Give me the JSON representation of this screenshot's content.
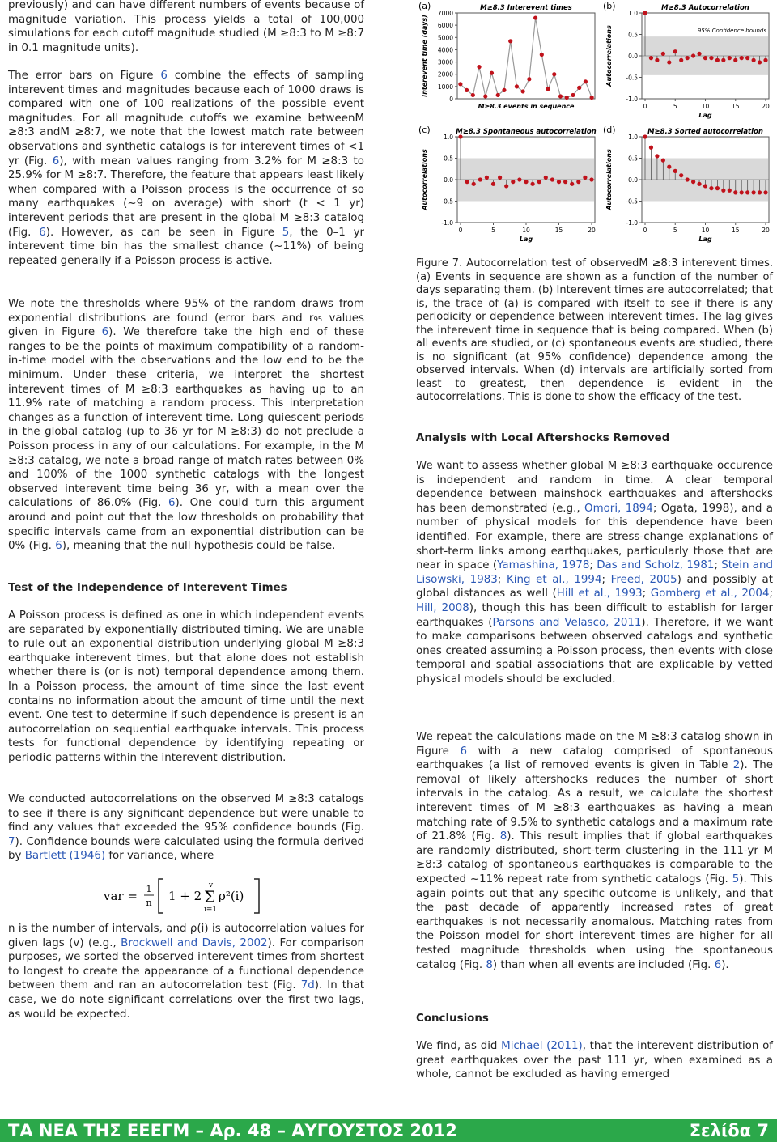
{
  "left_column": {
    "paragraphs": [
      [
        "previously) and can have different numbers of events because of magnitude variation. This process yields a total of 100,000 simulations for each cutoff magnitude studied (M ≥8:3 to M ≥8:7 in 0.1 magnitude units)."
      ],
      [
        "The error bars on Figure ",
        {
          "link": "6"
        },
        " combine the effects of sampling interevent times and magnitudes because each of 1000 draws is compared with one of 100 realizations of the possible event magnitudes. For all magnitude cutoffs we examine betweenM ≥8:3 andM ≥8:7, we note that the lowest match rate between observations and synthetic catalogs is for interevent times of <1 yr (Fig. ",
        {
          "link": "6"
        },
        "), with mean values ranging from 3.2% for M ≥8:3 to 25.9% for M ≥8:7. Therefore, the feature that appears least likely when compared with a Poisson process is the occurrence of so many earthquakes (~9 on average) with short (t < 1 yr) interevent periods that are present in the global M ≥8:3 catalog (Fig. ",
        {
          "link": "6"
        },
        "). However, as can be seen in Figure ",
        {
          "link": "5"
        },
        ", the 0–1 yr interevent time bin has the smallest chance (~11%) of being repeated generally if a Poisson process is active."
      ],
      [
        "We note the thresholds where 95% of the random draws from exponential distributions are found (error bars and r₉₅ values given in Figure ",
        {
          "link": "6"
        },
        "). We therefore take the high end of these ranges to be the points of maximum compatibility of a random-in-time model with the observations and the low end to be the minimum. Under these criteria, we interpret the shortest interevent times of M ≥8:3 earthquakes as having up to an 11.9% rate of matching a random process. This interpretation changes as a function of interevent time. Long quiescent periods in the global catalog (up to 36 yr for M ≥8:3) do not preclude a Poisson process in any of our calculations. For example, in the M ≥8:3 catalog, we note a broad range of match rates between 0% and 100% of the 1000 synthetic catalogs with the longest observed interevent time being 36 yr, with a mean over the calculations of 86.0% (Fig. ",
        {
          "link": "6"
        },
        "). One could turn this argument around and point out that the low thresholds on probability that specific intervals came from an exponential distribution can be 0% (Fig. ",
        {
          "link": "6"
        },
        "), meaning that the null hypothesis could be false."
      ]
    ],
    "section_heading": "Test of the Independence of Interevent Times",
    "section_paragraphs": [
      [
        "A Poisson process is defined as one in which independent events are separated by exponentially distributed timing. We are unable to rule out an exponential distribution underlying global M ≥8:3 earthquake interevent times, but that alone does not establish whether there is (or is not) temporal dependence among them. In a Poisson process, the amount of time since the last event contains no information about the amount of time until the next event. One test to determine if such dependence is present is an autocorrelation on sequential earthquake intervals. This process tests for functional dependence by identifying repeating or periodic patterns within the interevent distribution."
      ],
      [
        "We conducted autocorrelations on the observed M ≥8:3 catalogs to see if there is any significant dependence but were unable to find any values that exceeded the 95% confidence bounds (Fig. ",
        {
          "link": "7"
        },
        "). Confidence bounds were calculated using the formula derived by ",
        {
          "link": "Bartlett (1946)"
        },
        " for variance, where"
      ]
    ],
    "formula": {
      "lhs": "var =",
      "coefficient": [
        "1",
        "n"
      ],
      "bracket_body": "1 + 2",
      "sum_upper": "v",
      "sum_lower": "i=1",
      "summand": "ρ²(i)"
    },
    "after_formula": [
      "n is the number of intervals, and ρ(i) is autocorrelation values for given lags (v) (e.g., ",
      {
        "link": "Brockwell and Davis, 2002"
      },
      "). For comparison purposes, we sorted the observed interevent times from shortest to longest to create the appearance of a functional dependence between them and ran an autocorrelation test (Fig. ",
      {
        "link": "7d"
      },
      "). In that case, we do note significant correlations over the first two lags, as would be expected."
    ]
  },
  "figure": {
    "panels": [
      {
        "label": "(a)",
        "type": "line",
        "title": "M≥8.3 Interevent times",
        "ylabel": "Interevent time (days)",
        "xlabel": "M≥8.3 events in sequence",
        "ylim": [
          0,
          7000
        ],
        "yticks": [
          0,
          1000,
          2000,
          3000,
          4000,
          5000,
          6000,
          7000
        ],
        "values": [
          1200,
          700,
          300,
          2600,
          200,
          2100,
          300,
          700,
          4700,
          1000,
          600,
          1600,
          6600,
          3600,
          800,
          2000,
          200,
          100,
          300,
          900,
          1400,
          100
        ]
      },
      {
        "label": "(b)",
        "type": "stem",
        "title": "M≥8.3 Autocorrelation",
        "ylabel": "Autocorrelations",
        "xlabel": "Lag",
        "annotation": "95% Confidence bounds",
        "confidence_bound": 0.45,
        "xlim": [
          0,
          20
        ],
        "xticks": [
          0,
          5,
          10,
          15,
          20
        ],
        "ylim": [
          -1,
          1
        ],
        "yticks": [
          {
            "value": -1,
            "label": "-1.0"
          },
          {
            "value": -0.5,
            "label": "-0.5"
          },
          {
            "value": 0,
            "label": "0.0"
          },
          {
            "value": 0.5,
            "label": "0.5"
          },
          {
            "value": 1,
            "label": "1.0"
          }
        ],
        "values": [
          1,
          -0.05,
          -0.1,
          0.05,
          -0.15,
          0.1,
          -0.1,
          -0.05,
          0,
          0.05,
          -0.05,
          -0.05,
          -0.1,
          -0.1,
          -0.05,
          -0.1,
          -0.05,
          -0.05,
          -0.1,
          -0.15,
          -0.1
        ]
      },
      {
        "label": "(c)",
        "type": "stem",
        "title": "M≥8.3 Spontaneous autocorrelation",
        "ylabel": "Autocorrelations",
        "xlabel": "Lag",
        "confidence_bound": 0.5,
        "xlim": [
          0,
          20
        ],
        "xticks": [
          0,
          5,
          10,
          15,
          20
        ],
        "ylim": [
          -1,
          1
        ],
        "yticks": [
          {
            "value": -1,
            "label": "-1.0"
          },
          {
            "value": -0.5,
            "label": "-0.5"
          },
          {
            "value": 0,
            "label": "0.0"
          },
          {
            "value": 0.5,
            "label": "0.5"
          },
          {
            "value": 1,
            "label": "1.0"
          }
        ],
        "values": [
          1,
          -0.05,
          -0.1,
          0,
          0.05,
          -0.1,
          0.05,
          -0.15,
          -0.05,
          0,
          -0.05,
          -0.1,
          -0.05,
          0.05,
          0,
          -0.05,
          -0.05,
          -0.1,
          -0.05,
          0.05,
          0
        ]
      },
      {
        "label": "(d)",
        "type": "stem",
        "title": "M≥8.3 Sorted autocorrelation",
        "ylabel": "Autocorrelations",
        "xlabel": "Lag",
        "confidence_bound": 0.5,
        "xlim": [
          0,
          20
        ],
        "xticks": [
          0,
          5,
          10,
          15,
          20
        ],
        "ylim": [
          -1,
          1
        ],
        "yticks": [
          {
            "value": -1,
            "label": "-1.0"
          },
          {
            "value": -0.5,
            "label": "-0.5"
          },
          {
            "value": 0,
            "label": "0.0"
          },
          {
            "value": 0.5,
            "label": "0.5"
          },
          {
            "value": 1,
            "label": "1.0"
          }
        ],
        "values": [
          1,
          0.75,
          0.55,
          0.45,
          0.3,
          0.2,
          0.1,
          0,
          -0.05,
          -0.1,
          -0.15,
          -0.2,
          -0.2,
          -0.25,
          -0.25,
          -0.3,
          -0.3,
          -0.3,
          -0.3,
          -0.3,
          -0.3
        ]
      }
    ]
  },
  "right_column": {
    "caption": [
      "Figure 7. Autocorrelation test of observedM ≥8:3 interevent times. (a) Events in sequence are shown as a function of the number of days separating them. (b) Interevent times are autocorrelated; that is, the trace of (a) is compared with itself to see if there is any periodicity or dependence between interevent times. The lag gives the interevent time in sequence that is being compared. When (b) all events are studied, or (c) spontaneous events are studied, there is no significant (at 95% confidence) dependence among the observed intervals. When (d) intervals are artificially sorted from least to greatest, then dependence is evident in the autocorrelations. This is done to show the efficacy of the test."
    ],
    "section_heading": "Analysis with Local Aftershocks Removed",
    "section_paragraphs": [
      [
        "We want to assess whether global M ≥8:3 earthquake occurence is independent and random in time. A clear temporal dependence between mainshock earthquakes and aftershocks has been demonstrated (e.g., ",
        {
          "link": "Omori, 1894"
        },
        "; Ogata, 1998), and a number of physical models for this dependence have been identified. For example, there are stress-change explanations of short-term links among earthquakes, particularly those that are near in space (",
        {
          "link": "Yamashina, 1978"
        },
        "; ",
        {
          "link": "Das and Scholz, 1981"
        },
        "; ",
        {
          "link": "Stein and Lisowski, 1983"
        },
        "; ",
        {
          "link": "King et al., 1994"
        },
        "; ",
        {
          "link": "Freed, 2005"
        },
        ") and possibly at global distances as well (",
        {
          "link": "Hill et al., 1993"
        },
        "; ",
        {
          "link": "Gomberg et al., 2004"
        },
        "; ",
        {
          "link": "Hill, 2008"
        },
        "), though this has been difficult to establish for larger earthquakes (",
        {
          "link": "Parsons and Velasco, 2011"
        },
        "). Therefore, if we want to make comparisons between observed catalogs and synthetic ones created assuming a Poisson process, then events with close temporal and spatial associations that are explicable by vetted physical models should be excluded."
      ],
      [
        "We repeat the calculations made on the M ≥8:3 catalog shown in Figure ",
        {
          "link": "6"
        },
        " with a new catalog comprised of spontaneous earthquakes (a list of removed events is given in Table ",
        {
          "link": "2"
        },
        "). The removal of likely aftershocks reduces the number of short intervals in the catalog. As a result, we calculate the shortest interevent times of M ≥8:3 earthquakes as having a mean matching rate of 9.5% to synthetic catalogs and a maximum rate of 21.8% (Fig. ",
        {
          "link": "8"
        },
        "). This result implies that if global earthquakes are randomly distributed, short-term clustering in the 111-yr M ≥8:3 catalog of spontaneous earthquakes is comparable to the expected ~11% repeat rate from synthetic catalogs (Fig. ",
        {
          "link": "5"
        },
        "). This again points out that any specific outcome is unlikely, and that the past decade of apparently increased rates of great earthquakes is not necessarily anomalous. Matching rates from the Poisson model for short interevent times are higher for all tested magnitude thresholds when using the spontaneous catalog (Fig. ",
        {
          "link": "8"
        },
        ") than when all events are included (Fig. ",
        {
          "link": "6"
        },
        ")."
      ]
    ],
    "conclusions_heading": "Conclusions",
    "conclusions_paragraph": [
      "We find, as did ",
      {
        "link": "Michael (2011)"
      },
      ", that the interevent distribution of great earthquakes over the past 111 yr, when examined as a whole, cannot be excluded as having emerged"
    ]
  },
  "footer": {
    "journal": "ΤΑ ΝΕΑ ΤΗΣ ΕΕΕΓΜ – Αρ. 48 – ΑΥΓΟΥΣΤΟΣ 2012",
    "page": "Σελίδα 7"
  }
}
